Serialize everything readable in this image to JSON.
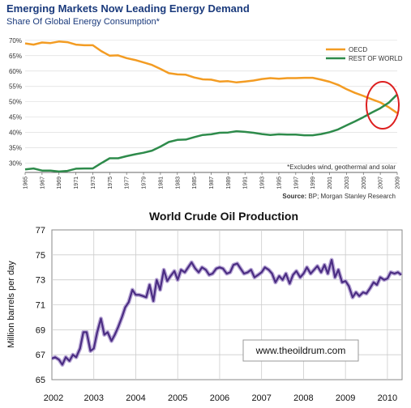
{
  "chart_data": [
    {
      "type": "line",
      "title": "Emerging Markets Now Leading Energy Demand",
      "subtitle": "Share Of Global Energy Consumption*",
      "note": "*Excludes wind, geothermal and solar",
      "source_label": "Source:",
      "source_text": "BP; Morgan Stanley Research",
      "ylim": [
        27,
        71
      ],
      "y_ticks": [
        30,
        35,
        40,
        45,
        50,
        55,
        60,
        65,
        70
      ],
      "y_tick_labels": [
        "30%",
        "35%",
        "40%",
        "45%",
        "50%",
        "55%",
        "60%",
        "65%",
        "70%"
      ],
      "x_ticks": [
        1965,
        1967,
        1969,
        1971,
        1973,
        1975,
        1977,
        1979,
        1981,
        1983,
        1985,
        1987,
        1989,
        1991,
        1993,
        1995,
        1997,
        1999,
        2001,
        2003,
        2005,
        2007,
        2009
      ],
      "grid": true,
      "legend_position": "top-right",
      "x": [
        1965,
        1966,
        1967,
        1968,
        1969,
        1970,
        1971,
        1972,
        1973,
        1974,
        1975,
        1976,
        1977,
        1978,
        1979,
        1980,
        1981,
        1982,
        1983,
        1984,
        1985,
        1986,
        1987,
        1988,
        1989,
        1990,
        1991,
        1992,
        1993,
        1994,
        1995,
        1996,
        1997,
        1998,
        1999,
        2000,
        2001,
        2002,
        2003,
        2004,
        2005,
        2006,
        2007,
        2008,
        2009
      ],
      "series": [
        {
          "name": "OECD",
          "color": "#f39c23",
          "values": [
            69,
            68.6,
            69.3,
            69.1,
            69.6,
            69.4,
            68.6,
            68.4,
            68.4,
            66.5,
            65,
            65.1,
            64.2,
            63.6,
            62.8,
            62,
            60.7,
            59.3,
            58.9,
            58.8,
            57.9,
            57.3,
            57.2,
            56.6,
            56.7,
            56.3,
            56.6,
            56.9,
            57.4,
            57.7,
            57.5,
            57.7,
            57.7,
            57.8,
            57.8,
            57.2,
            56.5,
            55.5,
            54.1,
            52.9,
            51.9,
            50.8,
            49.8,
            48.2,
            46.3
          ]
        },
        {
          "name": "REST OF WORLD",
          "color": "#2e8b4b",
          "values": [
            28,
            28.3,
            27.6,
            27.6,
            27.3,
            27.5,
            28.2,
            28.3,
            28.3,
            30,
            31.6,
            31.6,
            32.3,
            32.9,
            33.4,
            34.1,
            35.4,
            36.9,
            37.6,
            37.7,
            38.5,
            39.2,
            39.4,
            39.9,
            40,
            40.4,
            40.2,
            39.9,
            39.5,
            39.2,
            39.4,
            39.3,
            39.3,
            39.1,
            39.1,
            39.5,
            40.1,
            41,
            42.3,
            43.6,
            45,
            46.5,
            47.9,
            49.7,
            52.4
          ]
        }
      ],
      "highlight_color": "#dd2020"
    },
    {
      "type": "line",
      "title": "World Crude Oil Production",
      "ylabel": "Million barrels per day",
      "ylim": [
        65,
        77
      ],
      "y_ticks": [
        65,
        67,
        69,
        71,
        73,
        75,
        77
      ],
      "xlim": [
        2002,
        2010.35
      ],
      "x_ticks": [
        2002,
        2003,
        2004,
        2005,
        2006,
        2007,
        2008,
        2009,
        2010
      ],
      "grid": true,
      "watermark": "www.theoildrum.com",
      "series": [
        {
          "color": "#4b2d83",
          "x": [
            2002,
            2002.08,
            2002.17,
            2002.25,
            2002.33,
            2002.42,
            2002.5,
            2002.58,
            2002.67,
            2002.75,
            2002.83,
            2002.92,
            2003,
            2003.08,
            2003.17,
            2003.25,
            2003.33,
            2003.42,
            2003.5,
            2003.58,
            2003.67,
            2003.75,
            2003.83,
            2003.92,
            2004,
            2004.08,
            2004.17,
            2004.25,
            2004.33,
            2004.42,
            2004.5,
            2004.58,
            2004.67,
            2004.75,
            2004.83,
            2004.92,
            2005,
            2005.08,
            2005.17,
            2005.25,
            2005.33,
            2005.42,
            2005.5,
            2005.58,
            2005.67,
            2005.75,
            2005.83,
            2005.92,
            2006,
            2006.08,
            2006.17,
            2006.25,
            2006.33,
            2006.42,
            2006.5,
            2006.58,
            2006.67,
            2006.75,
            2006.83,
            2006.92,
            2007,
            2007.08,
            2007.17,
            2007.25,
            2007.33,
            2007.42,
            2007.5,
            2007.58,
            2007.67,
            2007.75,
            2007.83,
            2007.92,
            2008,
            2008.08,
            2008.17,
            2008.25,
            2008.33,
            2008.42,
            2008.5,
            2008.58,
            2008.67,
            2008.75,
            2008.83,
            2008.92,
            2009,
            2009.08,
            2009.17,
            2009.25,
            2009.33,
            2009.42,
            2009.5,
            2009.58,
            2009.67,
            2009.75,
            2009.83,
            2009.92,
            2010,
            2010.08,
            2010.17,
            2010.25,
            2010.33
          ],
          "y": [
            66.7,
            66.8,
            66.6,
            66.2,
            66.8,
            66.5,
            67,
            66.8,
            67.5,
            68.8,
            68.8,
            67.3,
            67.5,
            68.8,
            69.9,
            68.6,
            68.8,
            68.1,
            68.6,
            69.2,
            70,
            70.8,
            71.2,
            72.2,
            71.8,
            71.8,
            71.7,
            71.6,
            72.6,
            71.3,
            73,
            72.2,
            73.8,
            72.9,
            73.3,
            73.7,
            73,
            73.8,
            73.6,
            74,
            74.4,
            73.9,
            73.6,
            74,
            73.8,
            73.4,
            73.5,
            73.9,
            74,
            73.9,
            73.5,
            73.6,
            74.2,
            74.3,
            73.9,
            73.5,
            73.6,
            73.8,
            73.2,
            73.4,
            73.6,
            74,
            73.8,
            73.5,
            72.8,
            73.3,
            73,
            73.5,
            72.7,
            73.4,
            73.7,
            73.2,
            73.5,
            74,
            73.5,
            73.8,
            74.1,
            73.6,
            74.2,
            73.5,
            74.6,
            73.2,
            73.8,
            72.8,
            72.9,
            72.5,
            71.6,
            72,
            71.7,
            72,
            71.9,
            72.3,
            72.8,
            72.6,
            73.2,
            73,
            73.1,
            73.6,
            73.5,
            73.6,
            73.4
          ]
        }
      ]
    }
  ]
}
